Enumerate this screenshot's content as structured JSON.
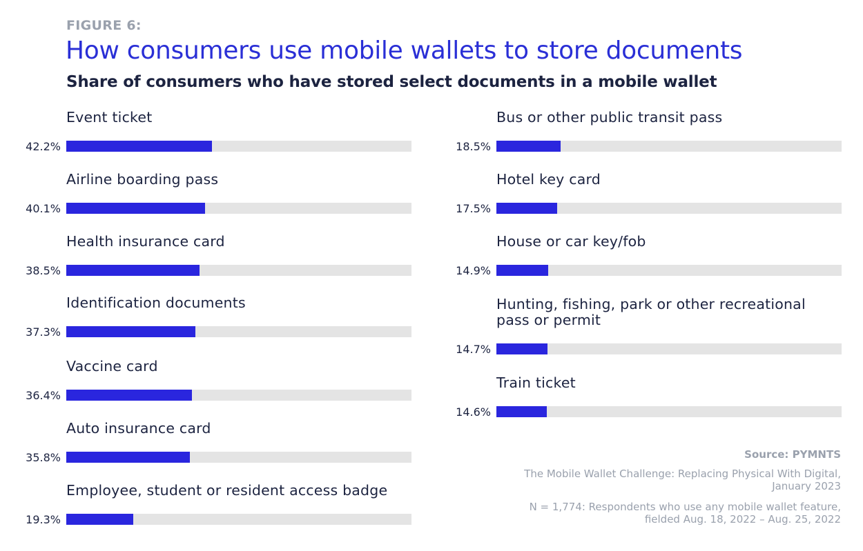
{
  "figure_label": "FIGURE 6:",
  "footer": {
    "source": "Source: PYMNTS",
    "report": "The Mobile Wallet Challenge: Replacing Physical With Digital, January 2023",
    "sample": "N = 1,774: Respondents who use any mobile wallet feature, fielded Aug. 18, 2022 – Aug. 25, 2022"
  },
  "colors": {
    "accent": "#2a26de",
    "title": "#2a2fd6",
    "track": "#e4e4e4",
    "muted": "#9aa1ad",
    "text": "#1c2340"
  },
  "chart_data": {
    "type": "bar",
    "orientation": "horizontal",
    "title": "How consumers use mobile wallets to store documents",
    "subtitle": "Share of consumers who have stored select documents in a mobile wallet",
    "xlim": [
      0,
      100
    ],
    "value_suffix": "%",
    "grid": false,
    "legend": "none",
    "categories": [
      "Event ticket",
      "Airline boarding pass",
      "Health insurance card",
      "Identification documents",
      "Vaccine card",
      "Auto insurance card",
      "Employee, student or resident access badge",
      "Bus or other public transit pass",
      "Hotel key card",
      "House or car key/fob",
      "Hunting, fishing, park or other recreational pass or permit",
      "Train ticket"
    ],
    "values": [
      42.2,
      40.1,
      38.5,
      37.3,
      36.4,
      35.8,
      19.3,
      18.5,
      17.5,
      14.9,
      14.7,
      14.6
    ],
    "value_labels": [
      "42.2%",
      "40.1%",
      "38.5%",
      "37.3%",
      "36.4%",
      "35.8%",
      "19.3%",
      "18.5%",
      "17.5%",
      "14.9%",
      "14.7%",
      "14.6%"
    ]
  }
}
